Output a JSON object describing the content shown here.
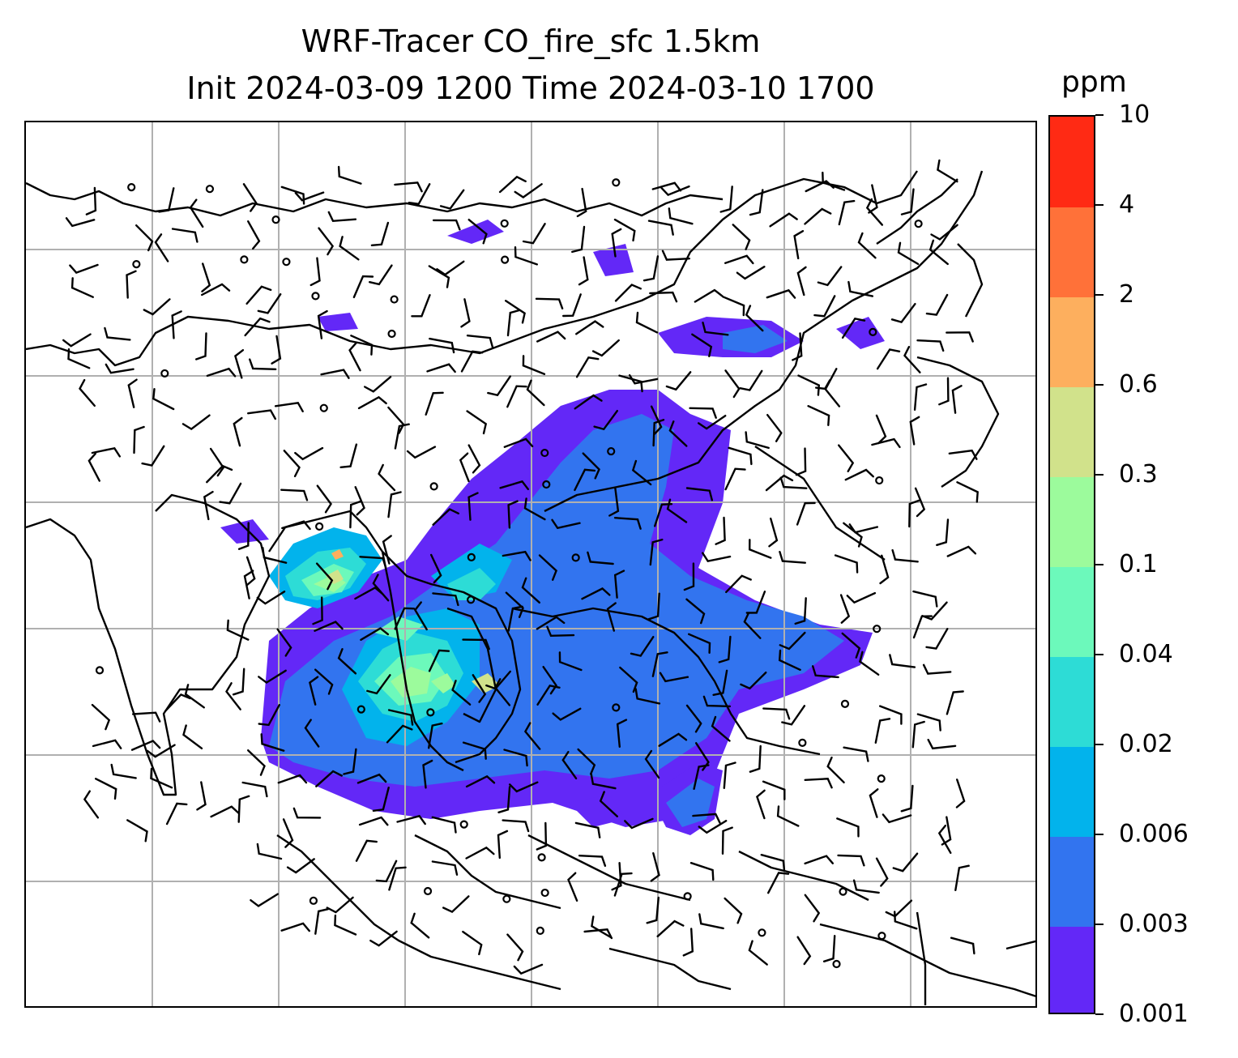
{
  "title": {
    "line1": "WRF-Tracer CO_fire_sfc 1.5km",
    "line2": "Init 2024-03-09 1200 Time 2024-03-10 1700"
  },
  "colorbar": {
    "unit": "ppm",
    "levels": [
      "0.001",
      "0.003",
      "0.006",
      "0.02",
      "0.04",
      "0.1",
      "0.3",
      "0.6",
      "2",
      "4",
      "10"
    ],
    "colors": [
      "#6328f7",
      "#3274ef",
      "#02b3ec",
      "#2ddcd6",
      "#6cf9bb",
      "#9cfb9c",
      "#d1e28b",
      "#fdaf5e",
      "#ff7139",
      "#ff2a14"
    ]
  },
  "map": {
    "projection_grid": "on",
    "basemap": "coastlines and country borders",
    "field": "CO fire tracer concentration (shaded) with wind barbs",
    "colors": {
      "coastline": "#000000",
      "gridline": "#b0b0b0",
      "barb": "#000000"
    }
  }
}
